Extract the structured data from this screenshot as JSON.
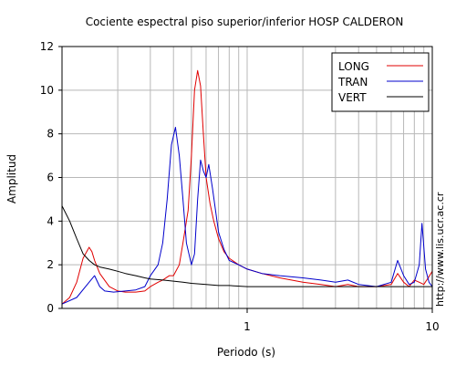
{
  "chart_data": {
    "type": "line",
    "title": "Cociente espectral piso superior/inferior  HOSP CALDERON",
    "xlabel": "Periodo (s)",
    "ylabel": "Amplitud",
    "xscale": "log",
    "xlim": [
      0.1,
      10
    ],
    "ylim": [
      0,
      12
    ],
    "x_ticks": [
      {
        "value": 1,
        "label": "1"
      },
      {
        "value": 10,
        "label": "10"
      }
    ],
    "y_ticks": [
      {
        "value": 0,
        "label": "0"
      },
      {
        "value": 2,
        "label": "2"
      },
      {
        "value": 4,
        "label": "4"
      },
      {
        "value": 6,
        "label": "6"
      },
      {
        "value": 8,
        "label": "8"
      },
      {
        "value": 10,
        "label": "10"
      },
      {
        "value": 12,
        "label": "12"
      }
    ],
    "grid": true,
    "legend_position": "top-right",
    "watermark": "http://www.lis.ucr.ac.cr",
    "series": [
      {
        "name": "LONG",
        "color": "#e00000",
        "points": [
          [
            0.1,
            0.2
          ],
          [
            0.11,
            0.5
          ],
          [
            0.12,
            1.2
          ],
          [
            0.13,
            2.3
          ],
          [
            0.14,
            2.8
          ],
          [
            0.145,
            2.6
          ],
          [
            0.15,
            2.2
          ],
          [
            0.16,
            1.6
          ],
          [
            0.18,
            1.0
          ],
          [
            0.2,
            0.8
          ],
          [
            0.22,
            0.75
          ],
          [
            0.25,
            0.75
          ],
          [
            0.28,
            0.8
          ],
          [
            0.3,
            1.0
          ],
          [
            0.33,
            1.2
          ],
          [
            0.35,
            1.3
          ],
          [
            0.38,
            1.5
          ],
          [
            0.4,
            1.5
          ],
          [
            0.43,
            2.0
          ],
          [
            0.45,
            3.0
          ],
          [
            0.48,
            4.5
          ],
          [
            0.5,
            7.0
          ],
          [
            0.52,
            10.0
          ],
          [
            0.54,
            10.9
          ],
          [
            0.56,
            10.2
          ],
          [
            0.58,
            8.0
          ],
          [
            0.6,
            6.0
          ],
          [
            0.63,
            4.8
          ],
          [
            0.66,
            4.0
          ],
          [
            0.7,
            3.2
          ],
          [
            0.75,
            2.6
          ],
          [
            0.8,
            2.3
          ],
          [
            0.9,
            2.0
          ],
          [
            1.0,
            1.8
          ],
          [
            1.2,
            1.6
          ],
          [
            1.5,
            1.4
          ],
          [
            2.0,
            1.2
          ],
          [
            2.5,
            1.1
          ],
          [
            3.0,
            1.0
          ],
          [
            3.5,
            1.1
          ],
          [
            4.0,
            1.0
          ],
          [
            5.0,
            1.0
          ],
          [
            6.0,
            1.1
          ],
          [
            6.5,
            1.6
          ],
          [
            7.0,
            1.2
          ],
          [
            7.5,
            1.0
          ],
          [
            8.0,
            1.3
          ],
          [
            8.5,
            1.2
          ],
          [
            9.0,
            1.1
          ],
          [
            9.5,
            1.4
          ],
          [
            10.0,
            1.7
          ]
        ]
      },
      {
        "name": "TRAN",
        "color": "#0000cc",
        "points": [
          [
            0.1,
            0.2
          ],
          [
            0.12,
            0.5
          ],
          [
            0.14,
            1.2
          ],
          [
            0.15,
            1.5
          ],
          [
            0.16,
            1.0
          ],
          [
            0.17,
            0.8
          ],
          [
            0.19,
            0.75
          ],
          [
            0.22,
            0.8
          ],
          [
            0.25,
            0.85
          ],
          [
            0.28,
            1.0
          ],
          [
            0.3,
            1.5
          ],
          [
            0.33,
            2.0
          ],
          [
            0.35,
            3.0
          ],
          [
            0.37,
            5.0
          ],
          [
            0.39,
            7.5
          ],
          [
            0.41,
            8.3
          ],
          [
            0.43,
            7.0
          ],
          [
            0.45,
            5.0
          ],
          [
            0.47,
            3.0
          ],
          [
            0.5,
            2.0
          ],
          [
            0.52,
            2.5
          ],
          [
            0.54,
            5.0
          ],
          [
            0.56,
            6.8
          ],
          [
            0.58,
            6.3
          ],
          [
            0.6,
            6.0
          ],
          [
            0.62,
            6.6
          ],
          [
            0.65,
            5.5
          ],
          [
            0.7,
            3.5
          ],
          [
            0.75,
            2.7
          ],
          [
            0.8,
            2.2
          ],
          [
            0.9,
            2.0
          ],
          [
            1.0,
            1.8
          ],
          [
            1.2,
            1.6
          ],
          [
            1.5,
            1.5
          ],
          [
            2.0,
            1.4
          ],
          [
            2.5,
            1.3
          ],
          [
            3.0,
            1.2
          ],
          [
            3.5,
            1.3
          ],
          [
            4.0,
            1.1
          ],
          [
            5.0,
            1.0
          ],
          [
            6.0,
            1.2
          ],
          [
            6.5,
            2.2
          ],
          [
            7.0,
            1.5
          ],
          [
            7.5,
            1.1
          ],
          [
            8.0,
            1.2
          ],
          [
            8.5,
            2.0
          ],
          [
            8.8,
            3.9
          ],
          [
            9.2,
            1.8
          ],
          [
            9.6,
            1.2
          ],
          [
            10.0,
            1.0
          ]
        ]
      },
      {
        "name": "VERT",
        "color": "#000000",
        "points": [
          [
            0.1,
            4.7
          ],
          [
            0.11,
            4.0
          ],
          [
            0.12,
            3.2
          ],
          [
            0.13,
            2.5
          ],
          [
            0.14,
            2.2
          ],
          [
            0.15,
            2.0
          ],
          [
            0.16,
            1.9
          ],
          [
            0.18,
            1.8
          ],
          [
            0.2,
            1.7
          ],
          [
            0.22,
            1.6
          ],
          [
            0.25,
            1.5
          ],
          [
            0.28,
            1.4
          ],
          [
            0.3,
            1.35
          ],
          [
            0.35,
            1.3
          ],
          [
            0.4,
            1.25
          ],
          [
            0.45,
            1.2
          ],
          [
            0.5,
            1.15
          ],
          [
            0.6,
            1.1
          ],
          [
            0.7,
            1.05
          ],
          [
            0.8,
            1.05
          ],
          [
            1.0,
            1.0
          ],
          [
            1.5,
            1.0
          ],
          [
            2.0,
            1.0
          ],
          [
            3.0,
            1.0
          ],
          [
            4.0,
            1.0
          ],
          [
            5.0,
            1.0
          ],
          [
            6.0,
            1.0
          ],
          [
            7.0,
            1.0
          ],
          [
            8.0,
            1.0
          ],
          [
            9.0,
            1.0
          ],
          [
            10.0,
            1.0
          ]
        ]
      }
    ]
  }
}
